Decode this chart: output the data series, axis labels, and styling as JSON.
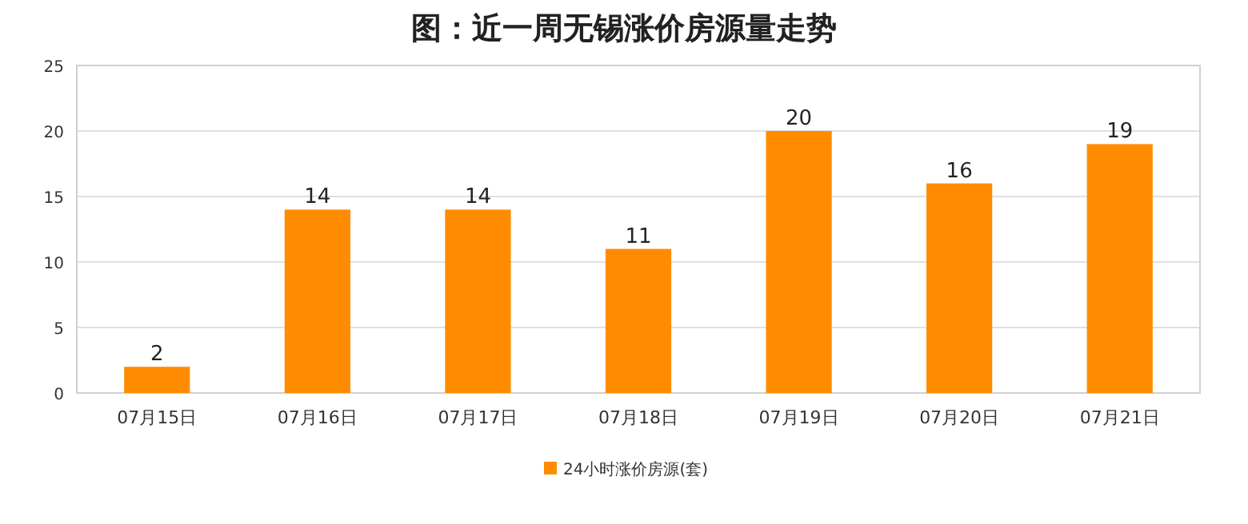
{
  "chart_data": {
    "type": "bar",
    "title": "图：近一周无锡涨价房源量走势",
    "categories": [
      "07月15日",
      "07月16日",
      "07月17日",
      "07月18日",
      "07月19日",
      "07月20日",
      "07月21日"
    ],
    "series": [
      {
        "name": "24小时涨价房源(套)",
        "color": "#ff8c00",
        "values": [
          2,
          14,
          14,
          11,
          20,
          16,
          19
        ]
      }
    ],
    "ylim": [
      0,
      25
    ],
    "yticks": [
      0,
      5,
      10,
      15,
      20,
      25
    ],
    "grid": "y",
    "legend": "bottom",
    "data_labels": true
  }
}
